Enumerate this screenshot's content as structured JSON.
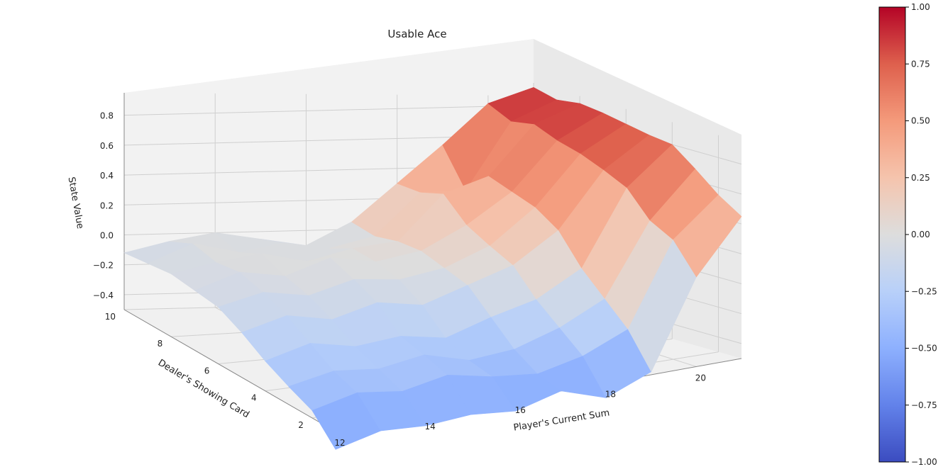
{
  "chart_data": {
    "type": "surface",
    "title": "Usable Ace",
    "xlabel": "Player's Current Sum",
    "ylabel": "Dealer's Showing Card",
    "zlabel": "State Value",
    "x": [
      12,
      13,
      14,
      15,
      16,
      17,
      18,
      19,
      20,
      21
    ],
    "y": [
      1,
      2,
      3,
      4,
      5,
      6,
      7,
      8,
      9,
      10
    ],
    "x_ticks": [
      "12",
      "14",
      "16",
      "18",
      "20"
    ],
    "y_ticks": [
      "2",
      "4",
      "6",
      "8",
      "10"
    ],
    "z_ticks": [
      "−0.4",
      "−0.2",
      "0.0",
      "0.2",
      "0.4",
      "0.6",
      "0.8"
    ],
    "zlim": [
      -0.5,
      0.95
    ],
    "z": [
      [
        -0.62,
        -0.55,
        -0.57,
        -0.55,
        -0.58,
        -0.5,
        -0.6,
        -0.48,
        0.1,
        0.45
      ],
      [
        -0.45,
        -0.38,
        -0.42,
        -0.36,
        -0.42,
        -0.45,
        -0.38,
        -0.25,
        0.3,
        0.55
      ],
      [
        -0.38,
        -0.32,
        -0.35,
        -0.3,
        -0.38,
        -0.35,
        -0.25,
        -0.1,
        0.38,
        0.68
      ],
      [
        -0.3,
        -0.22,
        -0.28,
        -0.25,
        -0.3,
        -0.2,
        -0.12,
        0.05,
        0.55,
        0.8
      ],
      [
        -0.2,
        -0.12,
        -0.18,
        -0.1,
        -0.15,
        -0.05,
        0.05,
        0.25,
        0.62,
        0.82
      ],
      [
        -0.12,
        -0.05,
        -0.1,
        -0.02,
        -0.05,
        0.0,
        0.12,
        0.35,
        0.68,
        0.85
      ],
      [
        -0.1,
        0.0,
        -0.05,
        0.05,
        0.0,
        0.05,
        0.2,
        0.4,
        0.72,
        0.88
      ],
      [
        -0.08,
        -0.02,
        0.02,
        -0.05,
        0.02,
        0.05,
        0.35,
        0.45,
        0.78,
        0.9
      ],
      [
        -0.1,
        0.02,
        -0.05,
        0.0,
        -0.05,
        0.02,
        0.3,
        0.3,
        0.75,
        0.88
      ],
      [
        -0.12,
        -0.05,
        0.0,
        -0.05,
        -0.1,
        0.05,
        0.3,
        0.55,
        0.82,
        0.92
      ]
    ],
    "colormap": "coolwarm",
    "colorbar": {
      "range": [
        -1.0,
        1.0
      ],
      "ticks": [
        1.0,
        0.75,
        0.5,
        0.25,
        0.0,
        -0.25,
        -0.5,
        -0.75,
        -1.0
      ],
      "tick_labels": [
        "1.00",
        "0.75",
        "0.50",
        "0.25",
        "0.00",
        "−0.25",
        "−0.50",
        "−0.75",
        "−1.00"
      ]
    },
    "grid": true
  }
}
